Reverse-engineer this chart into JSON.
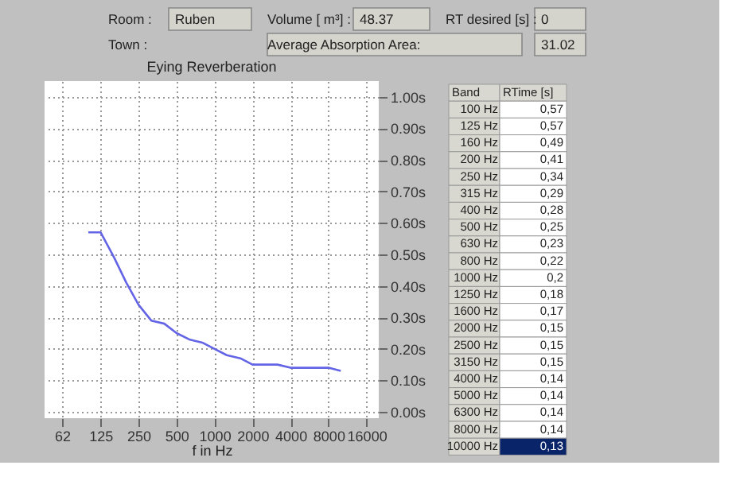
{
  "chart_data": {
    "type": "line",
    "title": "Eying Reverberation",
    "xlabel": "f in Hz",
    "x": [
      100,
      125,
      160,
      200,
      250,
      315,
      400,
      500,
      630,
      800,
      1000,
      1250,
      1600,
      2000,
      2500,
      3150,
      4000,
      5000,
      6300,
      8000,
      10000
    ],
    "series": [
      {
        "color": "#6464e6",
        "values": [
          0.57,
          0.57,
          0.49,
          0.41,
          0.34,
          0.29,
          0.28,
          0.25,
          0.23,
          0.22,
          0.2,
          0.18,
          0.17,
          0.15,
          0.15,
          0.15,
          0.14,
          0.14,
          0.14,
          0.14,
          0.13
        ]
      }
    ],
    "xlim": [
      45,
      20000
    ],
    "xticks": [
      62,
      125,
      250,
      500,
      1000,
      2000,
      4000,
      8000,
      16000
    ],
    "ylim": [
      -0.02,
      1.05
    ],
    "yticks": [
      {
        "value": 0,
        "label": "0.00s"
      },
      {
        "value": 0.1,
        "label": "0.10s"
      },
      {
        "value": 0.2,
        "label": "0.20s"
      },
      {
        "value": 0.3,
        "label": "0.30s"
      },
      {
        "value": 0.4,
        "label": "0.40s"
      },
      {
        "value": 0.5,
        "label": "0.50s"
      },
      {
        "value": 0.6,
        "label": "0.60s"
      },
      {
        "value": 0.7,
        "label": "0.70s"
      },
      {
        "value": 0.8,
        "label": "0.80s"
      },
      {
        "value": 0.9,
        "label": "0.90s"
      },
      {
        "value": 1.0,
        "label": "1.00s"
      }
    ],
    "log": "x",
    "grid": true,
    "marker": "none",
    "line_style": "solid",
    "annotations": [
      "Room :",
      "Ruben",
      "Volume [ m³] :",
      "48.37",
      "RT desired [s] :",
      "0",
      "Town :",
      "Average Absorption Area:",
      "31.02",
      "Band",
      "RTime [s]",
      "100 Hz",
      "125 Hz",
      "160 Hz",
      "200 Hz",
      "250 Hz",
      "315 Hz",
      "400 Hz",
      "500 Hz",
      "630 Hz",
      "800 Hz",
      "1000 Hz",
      "1250 Hz",
      "1600 Hz",
      "2000 Hz",
      "2500 Hz",
      "3150 Hz",
      "4000 Hz",
      "5000 Hz",
      "6300 Hz",
      "8000 Hz",
      "10000 Hz",
      "0,57",
      "0,57",
      "0,49",
      "0,41",
      "0,34",
      "0,29",
      "0,28",
      "0,25",
      "0,23",
      "0,22",
      "0,2",
      "0,18",
      "0,17",
      "0,15",
      "0,15",
      "0,15",
      "0,14",
      "0,14",
      "0,14",
      "0,14",
      "0,13"
    ]
  }
}
